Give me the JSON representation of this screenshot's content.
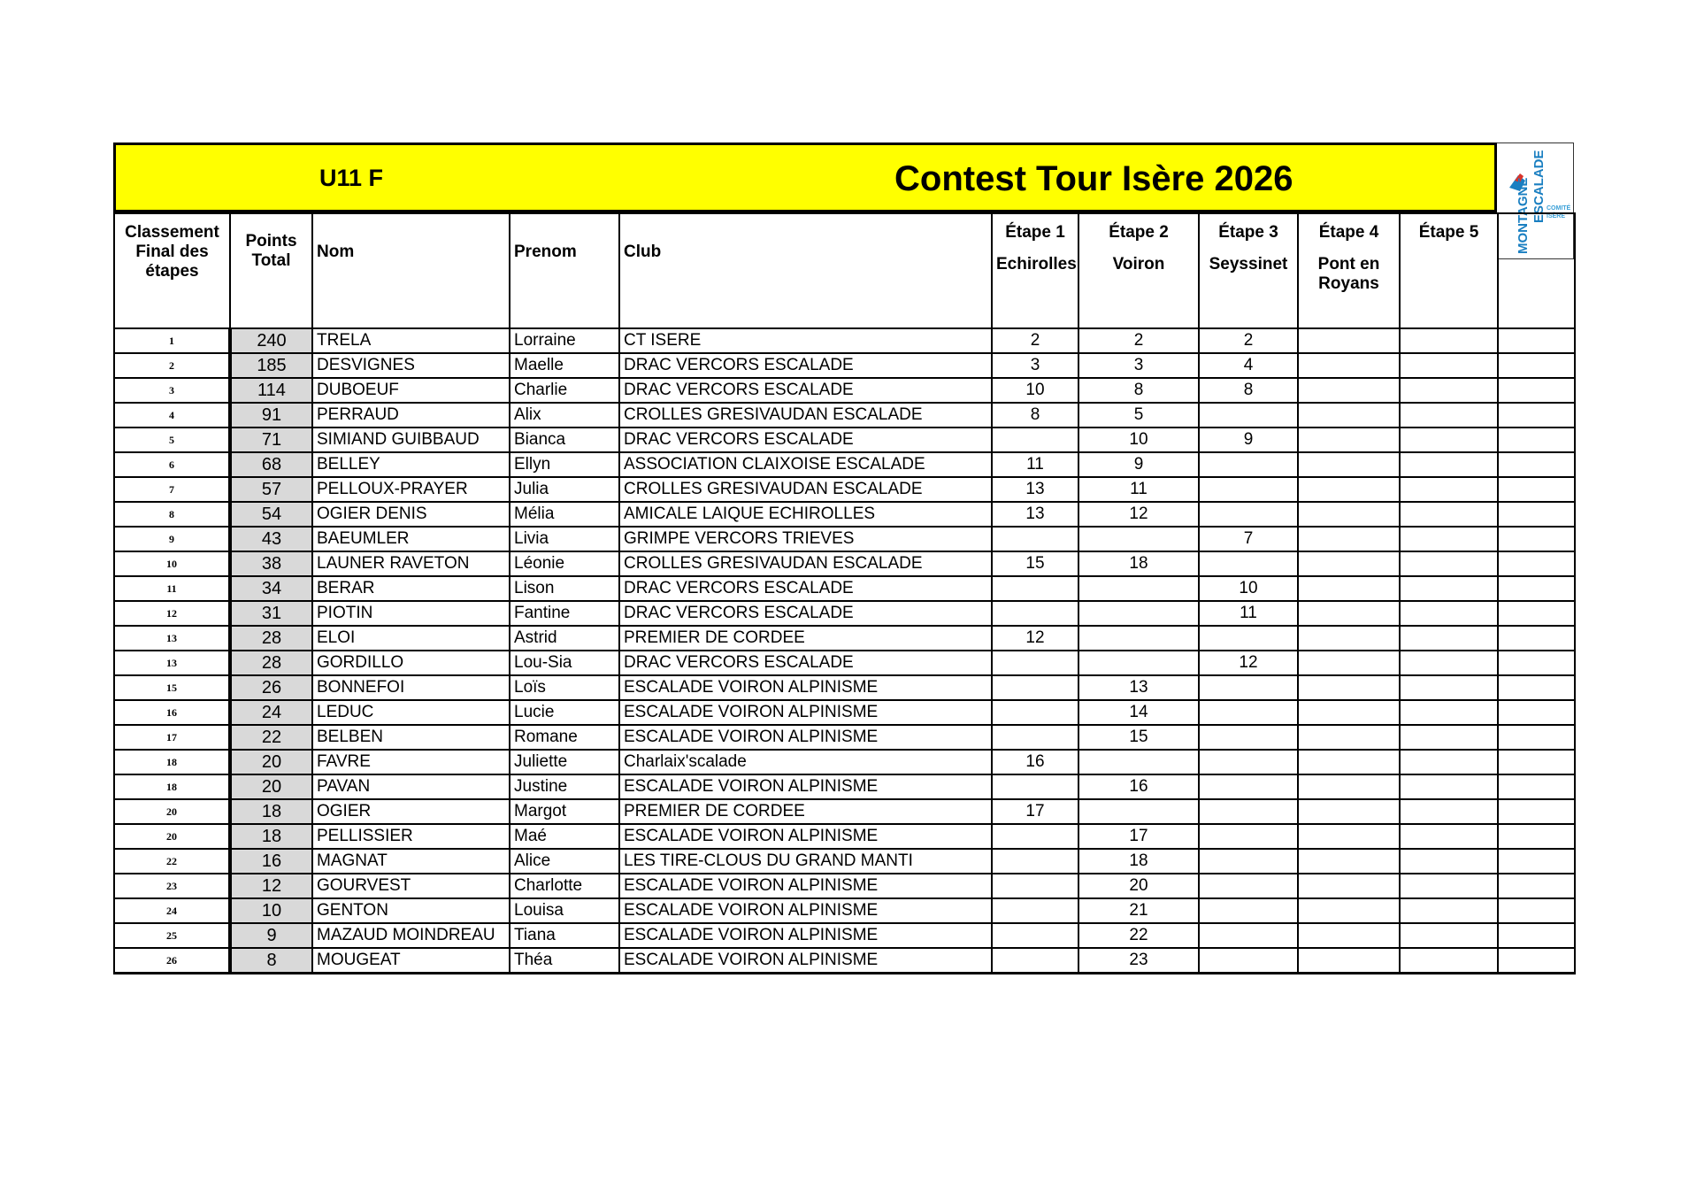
{
  "header": {
    "category": "U11 F",
    "title": "Contest Tour Isère 2026",
    "logo": "Fédération Française de la Montagne et de l'Escalade - Comité Isère"
  },
  "columns": {
    "rank": "Classement Final des étapes",
    "points": "Points Total",
    "nom": "Nom",
    "prenom": "Prenom",
    "club": "Club",
    "etapes": [
      {
        "label": "Étape 1",
        "place": "Echirolles"
      },
      {
        "label": "Étape 2",
        "place": "Voiron"
      },
      {
        "label": "Étape 3",
        "place": "Seyssinet"
      },
      {
        "label": "Étape 4",
        "place": "Pont en Royans"
      },
      {
        "label": "Étape 5",
        "place": ""
      }
    ]
  },
  "rows": [
    [
      "1",
      "240",
      "TRELA",
      "Lorraine",
      "CT ISERE",
      "2",
      "2",
      "2",
      "",
      ""
    ],
    [
      "2",
      "185",
      "DESVIGNES",
      "Maelle",
      "DRAC VERCORS ESCALADE",
      "3",
      "3",
      "4",
      "",
      ""
    ],
    [
      "3",
      "114",
      "DUBOEUF",
      "Charlie",
      "DRAC VERCORS ESCALADE",
      "10",
      "8",
      "8",
      "",
      ""
    ],
    [
      "4",
      "91",
      "PERRAUD",
      "Alix",
      "CROLLES GRESIVAUDAN ESCALADE",
      "8",
      "5",
      "",
      "",
      ""
    ],
    [
      "5",
      "71",
      "SIMIAND GUIBBAUD",
      "Bianca",
      "DRAC VERCORS ESCALADE",
      "",
      "10",
      "9",
      "",
      ""
    ],
    [
      "6",
      "68",
      "BELLEY",
      "Ellyn",
      "ASSOCIATION CLAIXOISE ESCALADE",
      "11",
      "9",
      "",
      "",
      ""
    ],
    [
      "7",
      "57",
      "PELLOUX-PRAYER",
      "Julia",
      "CROLLES GRESIVAUDAN ESCALADE",
      "13",
      "11",
      "",
      "",
      ""
    ],
    [
      "8",
      "54",
      "OGIER DENIS",
      "Mélia",
      "AMICALE LAIQUE ECHIROLLES",
      "13",
      "12",
      "",
      "",
      ""
    ],
    [
      "9",
      "43",
      "BAEUMLER",
      "Livia",
      "GRIMPE VERCORS TRIEVES",
      "",
      "",
      "7",
      "",
      ""
    ],
    [
      "10",
      "38",
      "LAUNER RAVETON",
      "Léonie",
      "CROLLES GRESIVAUDAN ESCALADE",
      "15",
      "18",
      "",
      "",
      ""
    ],
    [
      "11",
      "34",
      "BERAR",
      "Lison",
      "DRAC VERCORS ESCALADE",
      "",
      "",
      "10",
      "",
      ""
    ],
    [
      "12",
      "31",
      "PIOTIN",
      "Fantine",
      "DRAC VERCORS ESCALADE",
      "",
      "",
      "11",
      "",
      ""
    ],
    [
      "13",
      "28",
      "ELOI",
      "Astrid",
      "PREMIER DE CORDEE",
      "12",
      "",
      "",
      "",
      ""
    ],
    [
      "13",
      "28",
      "GORDILLO",
      "Lou-Sia",
      "DRAC VERCORS ESCALADE",
      "",
      "",
      "12",
      "",
      ""
    ],
    [
      "15",
      "26",
      "BONNEFOI",
      "Loïs",
      "ESCALADE VOIRON ALPINISME",
      "",
      "13",
      "",
      "",
      ""
    ],
    [
      "16",
      "24",
      "LEDUC",
      "Lucie",
      "ESCALADE VOIRON ALPINISME",
      "",
      "14",
      "",
      "",
      ""
    ],
    [
      "17",
      "22",
      "BELBEN",
      "Romane",
      "ESCALADE VOIRON ALPINISME",
      "",
      "15",
      "",
      "",
      ""
    ],
    [
      "18",
      "20",
      "FAVRE",
      "Juliette",
      "Charlaix'scalade",
      "16",
      "",
      "",
      "",
      ""
    ],
    [
      "18",
      "20",
      "PAVAN",
      "Justine",
      "ESCALADE VOIRON ALPINISME",
      "",
      "16",
      "",
      "",
      ""
    ],
    [
      "20",
      "18",
      "OGIER",
      "Margot",
      "PREMIER DE CORDEE",
      "17",
      "",
      "",
      "",
      ""
    ],
    [
      "20",
      "18",
      "PELLISSIER",
      "Maé",
      "ESCALADE VOIRON ALPINISME",
      "",
      "17",
      "",
      "",
      ""
    ],
    [
      "22",
      "16",
      "MAGNAT",
      "Alice",
      "LES TIRE-CLOUS DU GRAND MANTI",
      "",
      "18",
      "",
      "",
      ""
    ],
    [
      "23",
      "12",
      "GOURVEST",
      "Charlotte",
      "ESCALADE VOIRON ALPINISME",
      "",
      "20",
      "",
      "",
      ""
    ],
    [
      "24",
      "10",
      "GENTON",
      "Louisa",
      "ESCALADE VOIRON ALPINISME",
      "",
      "21",
      "",
      "",
      ""
    ],
    [
      "25",
      "9",
      "MAZAUD MOINDREAU",
      "Tiana",
      "ESCALADE VOIRON ALPINISME",
      "",
      "22",
      "",
      "",
      ""
    ],
    [
      "26",
      "8",
      "MOUGEAT",
      "Théa",
      "ESCALADE VOIRON ALPINISME",
      "",
      "23",
      "",
      "",
      ""
    ]
  ],
  "colors": {
    "banner": "#ffff00",
    "points_bg": "#d9d9d9",
    "logo_blue": "#1a7fc1",
    "logo_red": "#d9342b"
  }
}
